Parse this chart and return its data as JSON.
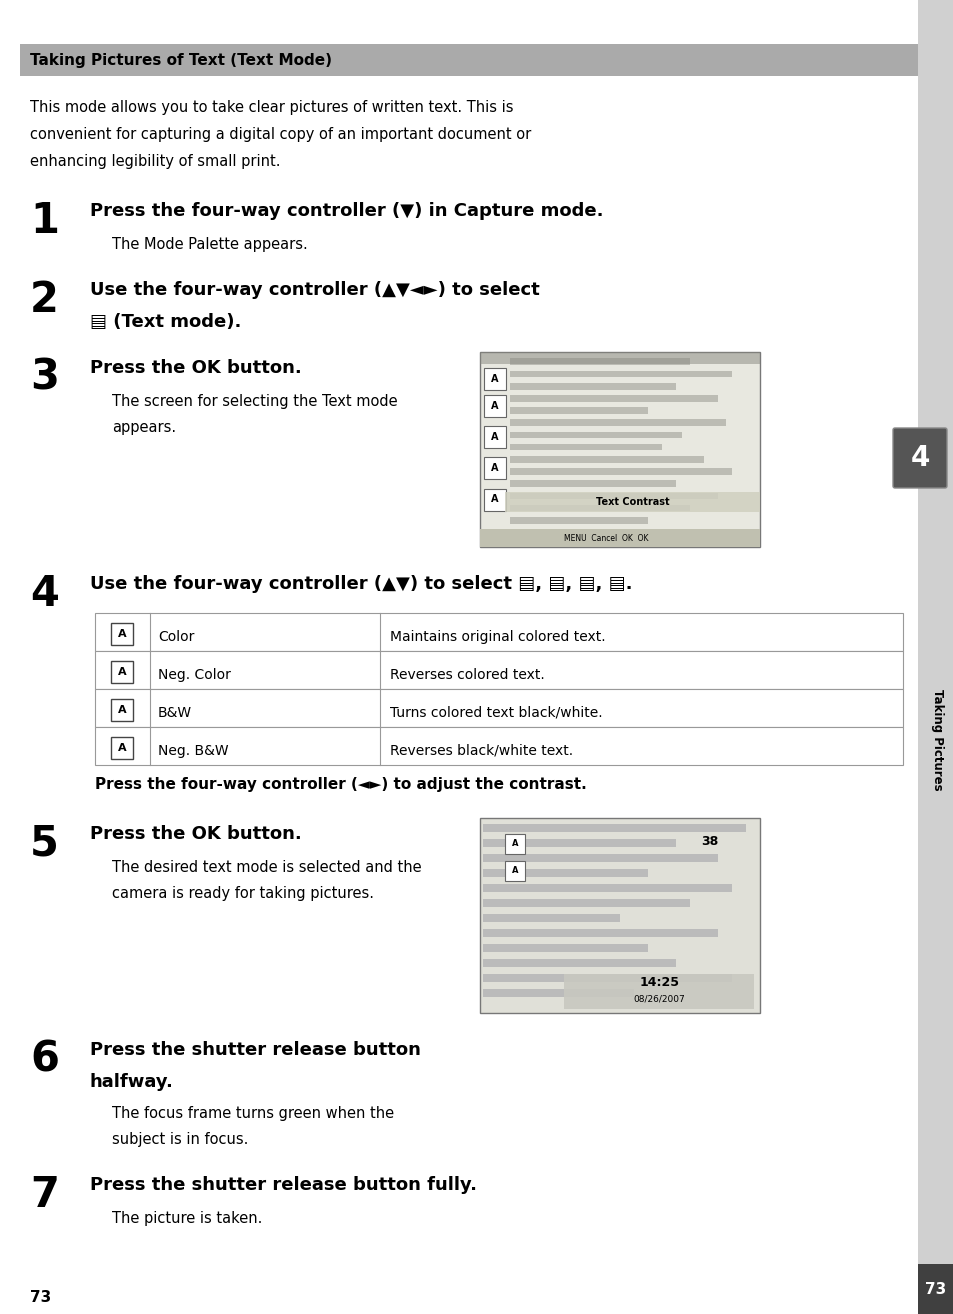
{
  "bg_color": "#ffffff",
  "sidebar_color": "#d0d0d0",
  "sidebar_dark": "#606060",
  "header_bg": "#aaaaaa",
  "header_text": "Taking Pictures of Text (Text Mode)",
  "intro_text": "This mode allows you to take clear pictures of written text. This is\nconvenient for capturing a digital copy of an important document or\nenhancing legibility of small print.",
  "steps": [
    {
      "num": "1",
      "bold": "Press the four-way controller (▼) in Capture mode.",
      "normal": "The Mode Palette appears.",
      "has_image": false
    },
    {
      "num": "2",
      "bold_line1": "Use the four-way controller (▲▼◄►) to select",
      "bold_line2": "▤ (Text mode).",
      "normal": "",
      "has_image": false,
      "two_line_bold": true
    },
    {
      "num": "3",
      "bold": "Press the OK button.",
      "normal": "The screen for selecting the Text mode\nappears.",
      "has_image": true,
      "img_type": "text_contrast"
    },
    {
      "num": "4",
      "bold": "Use the four-way controller (▲▼) to select ▤, ▤, ▤, ▤.",
      "normal": "",
      "has_image": false,
      "has_table": true,
      "table_rows": [
        [
          "Color",
          "Maintains original colored text."
        ],
        [
          "Neg. Color",
          "Reverses colored text."
        ],
        [
          "B&W",
          "Turns colored text black/white."
        ],
        [
          "Neg. B&W",
          "Reverses black/white text."
        ]
      ],
      "after_table": "Press the four-way controller (◄►) to adjust the contrast."
    },
    {
      "num": "5",
      "bold": "Press the OK button.",
      "normal": "The desired text mode is selected and the\ncamera is ready for taking pictures.",
      "has_image": true,
      "img_type": "date_time"
    },
    {
      "num": "6",
      "bold_line1": "Press the shutter release button",
      "bold_line2": "halfway.",
      "normal": "The focus frame turns green when the\nsubject is in focus.",
      "has_image": false,
      "two_line_bold": true
    },
    {
      "num": "7",
      "bold": "Press the shutter release button fully.",
      "normal": "The picture is taken.",
      "has_image": false
    }
  ],
  "page_number": "73",
  "chapter_label": "Taking Pictures",
  "chapter_num": "4"
}
